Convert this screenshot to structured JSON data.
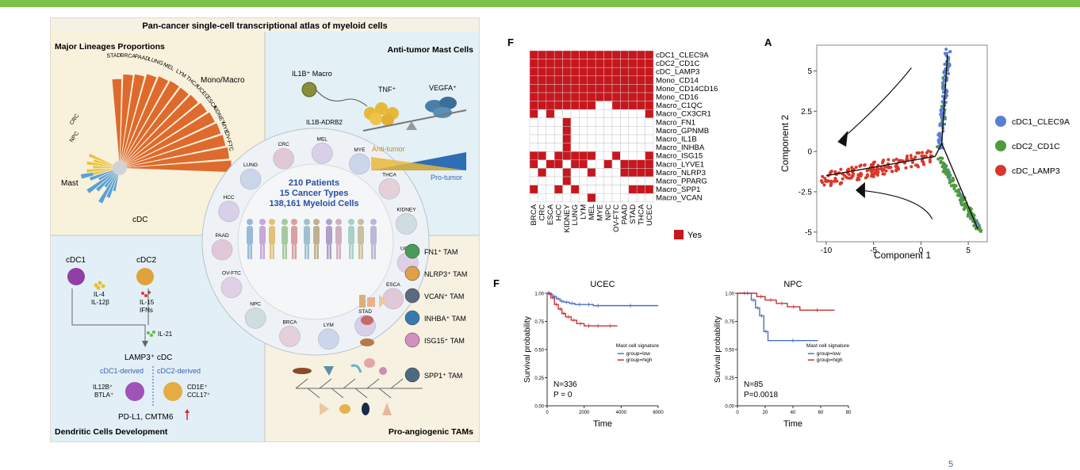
{
  "page": {
    "number": "5",
    "accent_color": "#7cc24a"
  },
  "atlas": {
    "title": "Pan-cancer single-cell transcriptional atlas of myeloid cells",
    "quadrants": {
      "lineages": "Major Lineages Proportions",
      "mast": "Anti-tumor Mast Cells",
      "dc": "Dendritic Cells Development",
      "tam": "Pro-angiogenic TAMs"
    },
    "center": {
      "l1": "210 Patients",
      "l2": "15 Cancer Types",
      "l3": "138,161 Myeloid Cells"
    },
    "ring_cancers": [
      "CRC",
      "MEL",
      "MYE",
      "THCA",
      "KIDNEY",
      "UCEC",
      "ESCA",
      "STAD",
      "LYM",
      "BRCA",
      "NPC",
      "OV-FTC",
      "PAAD",
      "HCC",
      "LUNG"
    ],
    "fan_labels": [
      "STAD",
      "BRCA",
      "PAAD",
      "LUNG",
      "MEL",
      "LYM",
      "THCA",
      "UCEC",
      "ESCA",
      "KIDNEY",
      "MYE",
      "OV-FTC"
    ],
    "fan_side_labels": [
      "CRC",
      "NPC"
    ],
    "lineage_labels": {
      "mono": "Mono/Macro",
      "mast": "Mast",
      "cdc": "cDC"
    },
    "mast": {
      "il1b": "IL1B⁺ Macro",
      "adrb2": "IL1B-ADRB2",
      "tnf": "TNF⁺",
      "vegfa": "VEGFA⁺",
      "anti": "Anti-tumor",
      "pro": "Pro-tumor"
    },
    "dc": {
      "cdc1": "cDC1",
      "cdc2": "cDC2",
      "il4": "IL-4",
      "il12": "IL-12β",
      "il15": "IL-15",
      "ifns": "IFNs",
      "il21": "IL-21",
      "lamp3": "LAMP3⁺ cDC",
      "cdc1d": "cDC1-derived",
      "cdc2d": "cDC2-derived",
      "il12b": "IL12B⁺",
      "btla": "BTLA⁺",
      "cd1e": "CD1E⁺",
      "ccl17": "CCL17⁺",
      "pdl1": "PD-L1, CMTM6"
    },
    "tams": [
      "FN1⁺ TAM",
      "NLRP3⁺ TAM",
      "VCAN⁺ TAM",
      "INHBA⁺ TAM",
      "ISG15⁺ TAM",
      "SPP1⁺ TAM"
    ]
  },
  "heatmap": {
    "panel": "F",
    "rows": [
      "cDC1_CLEC9A",
      "cDC2_CD1C",
      "cDC_LAMP3",
      "Mono_CD14",
      "Mono_CD14CD16",
      "Mono_CD16",
      "Macro_C1QC",
      "Macro_CX3CR1",
      "Macro_FN1",
      "Macro_GPNMB",
      "Macro_IL1B",
      "Macro_INHBA",
      "Macro_ISG15",
      "Macro_LYVE1",
      "Macro_NLRP3",
      "Macro_PPARG",
      "Macro_SPP1",
      "Macro_VCAN"
    ],
    "cols": [
      "BRCA",
      "CRC",
      "ESCA",
      "HCC",
      "KIDNEY",
      "LUNG",
      "LYM",
      "MEL",
      "MYE",
      "NPC",
      "OV-FTC",
      "PAAD",
      "STAD",
      "THCA",
      "UCEC"
    ],
    "matrix": [
      "111111111111111",
      "111111111111111",
      "111111111111111",
      "111111111111111",
      "111111111111111",
      "111111111111111",
      "111111110011111",
      "101000000000001",
      "000010000000000",
      "000010000000000",
      "000010000000000",
      "000010000000000",
      "110111110010001",
      "101101100101111",
      "010010010001111",
      "000010000000000",
      "100101000000111",
      "000000010000000"
    ],
    "yes_color": "#c8161d",
    "legend": "Yes"
  },
  "chart_data": [
    {
      "type": "scatter",
      "panel": "A",
      "xlabel": "Component 1",
      "ylabel": "Component 2",
      "xlim": [
        -11,
        7
      ],
      "ylim": [
        -5.6,
        6.6
      ],
      "xticks": [
        -10,
        -5,
        0,
        5
      ],
      "yticks": [
        -5.0,
        -2.5,
        0.0,
        2.5,
        5.0
      ],
      "legend_position": "right",
      "series": [
        {
          "name": "cDC1_CLEC9A",
          "color": "#5b7fd4",
          "branch": "top"
        },
        {
          "name": "cDC2_CD1C",
          "color": "#4f9a3c",
          "branch": "bottom-right"
        },
        {
          "name": "cDC_LAMP3",
          "color": "#d8382a",
          "branch": "left"
        }
      ]
    },
    {
      "type": "line",
      "title": "UCEC",
      "xlabel": "Time",
      "ylabel": "Survival probability",
      "xlim": [
        0,
        6000
      ],
      "ylim": [
        0,
        1
      ],
      "xticks": [
        0,
        2000,
        4000,
        6000
      ],
      "yticks": [
        "0.00",
        "0.25",
        "0.50",
        "0.75",
        "1.00"
      ],
      "legend_title": "Mast cell signature",
      "series": [
        {
          "name": "group=low",
          "color": "#4a6fc4",
          "x": [
            0,
            150,
            300,
            500,
            700,
            900,
            1200,
            1500,
            2000,
            2500,
            3000,
            6000
          ],
          "y": [
            1,
            0.99,
            0.97,
            0.95,
            0.93,
            0.92,
            0.91,
            0.9,
            0.9,
            0.89,
            0.89,
            0.89
          ]
        },
        {
          "name": "group=high",
          "color": "#c83232",
          "x": [
            0,
            200,
            400,
            600,
            800,
            1000,
            1300,
            1600,
            2000,
            2500,
            3000,
            3800
          ],
          "y": [
            1,
            0.96,
            0.9,
            0.86,
            0.82,
            0.79,
            0.76,
            0.73,
            0.71,
            0.71,
            0.71,
            0.71
          ]
        }
      ],
      "annotations": [
        "N=336",
        "P = 0"
      ]
    },
    {
      "type": "line",
      "title": "NPC",
      "xlabel": "Time",
      "ylabel": "Survival probability",
      "xlim": [
        0,
        80
      ],
      "ylim": [
        0,
        1
      ],
      "xticks": [
        0,
        20,
        40,
        60,
        80
      ],
      "yticks": [
        "0.00",
        "0.25",
        "0.50",
        "0.75",
        "1.00"
      ],
      "legend_title": "Mast cell signature",
      "series": [
        {
          "name": "group=low",
          "color": "#4a6fc4",
          "x": [
            0,
            10,
            13,
            16,
            19,
            22,
            58
          ],
          "y": [
            1,
            0.94,
            0.87,
            0.8,
            0.66,
            0.58,
            0.58
          ]
        },
        {
          "name": "group=high",
          "color": "#c83232",
          "x": [
            0,
            14,
            20,
            28,
            36,
            45,
            70
          ],
          "y": [
            1,
            0.97,
            0.94,
            0.91,
            0.88,
            0.85,
            0.85
          ]
        }
      ],
      "annotations": [
        "N=85",
        "P=0.0018"
      ]
    }
  ]
}
